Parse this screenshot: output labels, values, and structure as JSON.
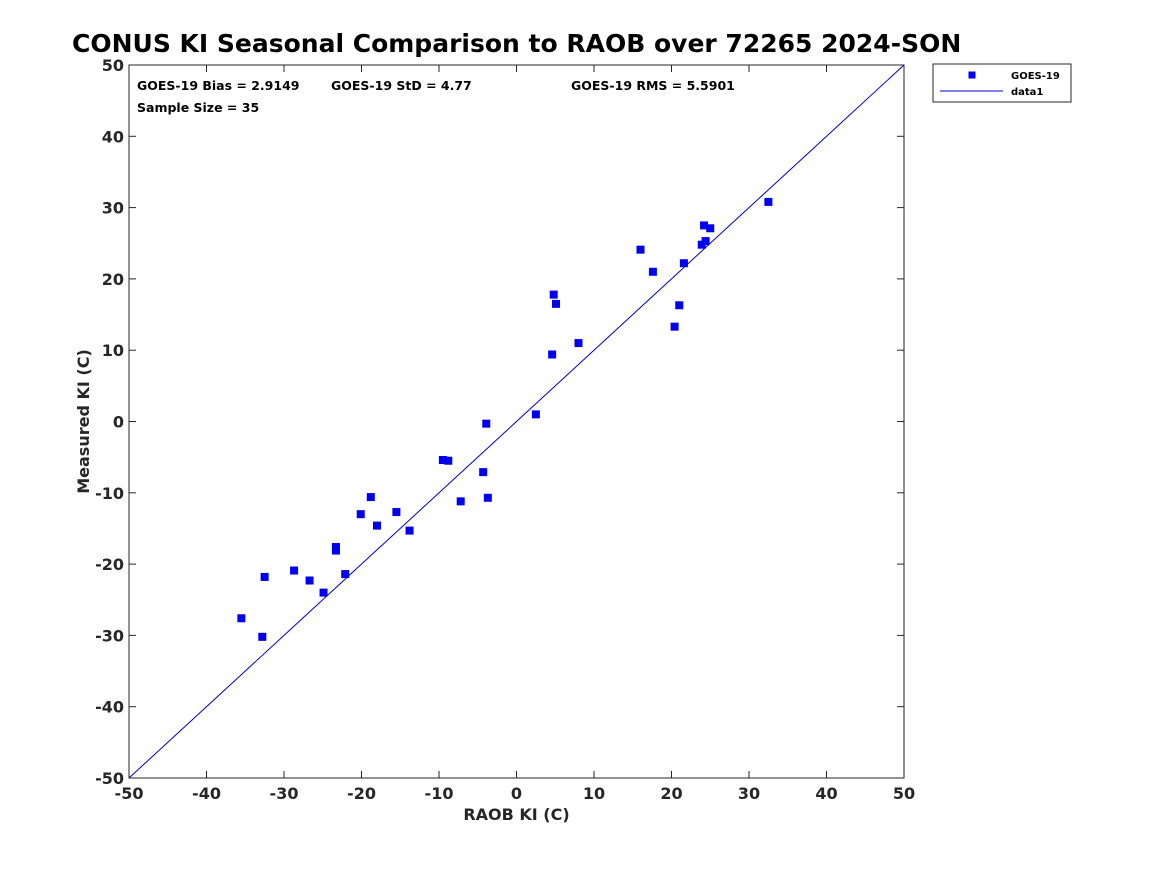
{
  "chart_data": {
    "type": "scatter",
    "title": "CONUS KI Seasonal Comparison to RAOB over 72265 2024-SON",
    "xlabel": "RAOB KI (C)",
    "ylabel": "Measured KI (C)",
    "xlim": [
      -50,
      50
    ],
    "ylim": [
      -50,
      50
    ],
    "xticks": [
      -50,
      -40,
      -30,
      -20,
      -10,
      0,
      10,
      20,
      30,
      40,
      50
    ],
    "yticks": [
      -50,
      -40,
      -30,
      -20,
      -10,
      0,
      10,
      20,
      30,
      40,
      50
    ],
    "grid": false,
    "legend_position": "outside-top-right",
    "colors": {
      "series": "#0000ee",
      "line": "#0000cc"
    },
    "stats": {
      "bias": "GOES-19 Bias = 2.9149",
      "std": "GOES-19 StD = 4.77",
      "rms": "GOES-19 RMS = 5.5901",
      "sample": "Sample Size = 35"
    },
    "series": [
      {
        "name": "GOES-19",
        "marker": "square",
        "x": [
          -35.5,
          -32.8,
          -32.5,
          -28.7,
          -26.7,
          -24.9,
          -23.3,
          -23.3,
          -22.1,
          -20.1,
          -18.8,
          -18.0,
          -15.5,
          -13.8,
          -9.5,
          -8.8,
          -7.2,
          -4.3,
          -3.9,
          -3.7,
          2.5,
          4.6,
          4.8,
          5.1,
          8.0,
          16.0,
          17.6,
          20.4,
          21.0,
          21.6,
          23.9,
          24.2,
          24.4,
          25.0,
          32.5
        ],
        "y": [
          -27.6,
          -30.2,
          -21.8,
          -20.9,
          -22.3,
          -24.0,
          -17.6,
          -18.1,
          -21.4,
          -13.0,
          -10.6,
          -14.6,
          -12.7,
          -15.3,
          -5.4,
          -5.5,
          -11.2,
          -7.1,
          -0.3,
          -10.7,
          1.0,
          9.4,
          17.8,
          16.5,
          11.0,
          24.1,
          21.0,
          13.3,
          16.3,
          22.2,
          24.8,
          27.5,
          25.3,
          27.1,
          30.8
        ]
      },
      {
        "name": "data1",
        "type": "line",
        "x": [
          -50,
          50
        ],
        "y": [
          -50,
          50
        ]
      }
    ]
  }
}
